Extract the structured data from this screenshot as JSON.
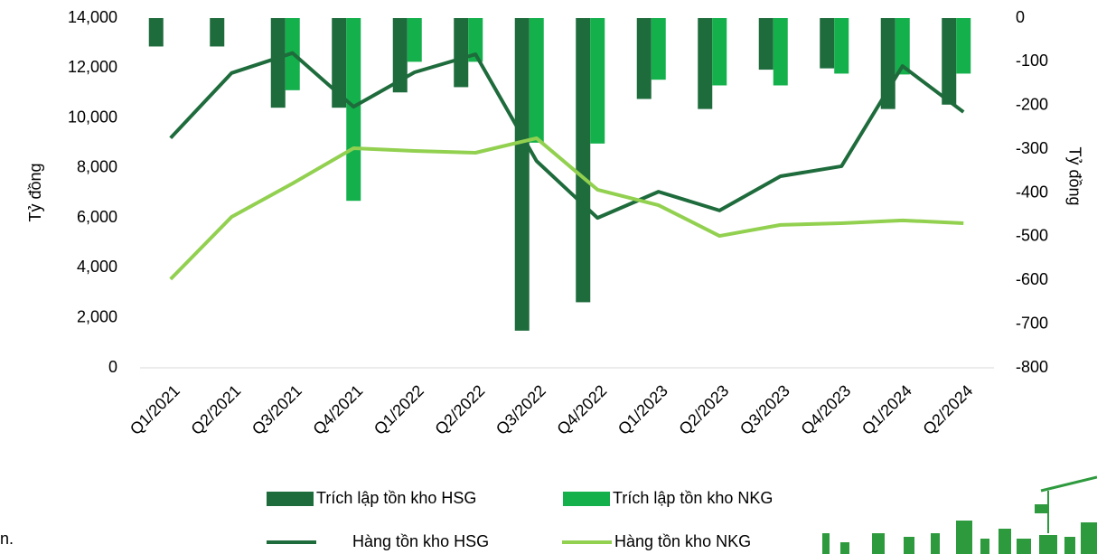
{
  "chart_data": {
    "type": "combo",
    "y_label": "Tỷ đồng",
    "y2_label": "Tỷ đồng",
    "note": "n.",
    "categories": [
      "Q1/2021",
      "Q2/2021",
      "Q3/2021",
      "Q4/2021",
      "Q1/2022",
      "Q2/2022",
      "Q3/2022",
      "Q4/2022",
      "Q1/2023",
      "Q2/2023",
      "Q3/2023",
      "Q4/2023",
      "Q1/2024",
      "Q2/2024"
    ],
    "series": [
      {
        "name": "Trích lập tồn kho HSG",
        "type": "bar",
        "axis": "y2",
        "color": "#1e6b3c",
        "values": [
          -65,
          -65,
          -205,
          -205,
          -170,
          -158,
          -715,
          -650,
          -185,
          -208,
          -118,
          -115,
          -208,
          -198
        ]
      },
      {
        "name": "Trích lập tồn kho NKG",
        "type": "bar",
        "axis": "y2",
        "color": "#13b04b",
        "values": [
          null,
          null,
          -165,
          -418,
          -100,
          -100,
          -285,
          -287,
          -141,
          -154,
          -154,
          -127,
          -129,
          -127
        ]
      },
      {
        "name": "Hàng tồn kho HSG",
        "type": "line",
        "color": "#1e6b3c",
        "values": [
          9200,
          11800,
          12600,
          10450,
          11830,
          12550,
          8280,
          6000,
          7050,
          6300,
          7670,
          8070,
          12080,
          10240
        ]
      },
      {
        "name": "Hàng tồn kho NKG",
        "type": "line",
        "color": "#92d050",
        "values": [
          3550,
          6040,
          7380,
          8790,
          8680,
          8610,
          9190,
          7130,
          6510,
          5280,
          5720,
          5790,
          5900,
          5790
        ]
      }
    ],
    "ylim": [
      0,
      14000
    ],
    "yticks": [
      0,
      {
        "value": 2000,
        "label": "2,000"
      },
      {
        "value": 4000,
        "label": "4,000"
      },
      {
        "value": 6000,
        "label": "6,000"
      },
      {
        "value": 8000,
        "label": "8,000"
      },
      {
        "value": 10000,
        "label": "10,000"
      },
      {
        "value": 12000,
        "label": "12,000"
      },
      {
        "value": 14000,
        "label": "14,000"
      }
    ],
    "y2lim": [
      -800,
      0
    ],
    "y2ticks": [
      -800,
      -700,
      -600,
      -500,
      -400,
      -300,
      -200,
      -100,
      0
    ],
    "grid": false
  }
}
